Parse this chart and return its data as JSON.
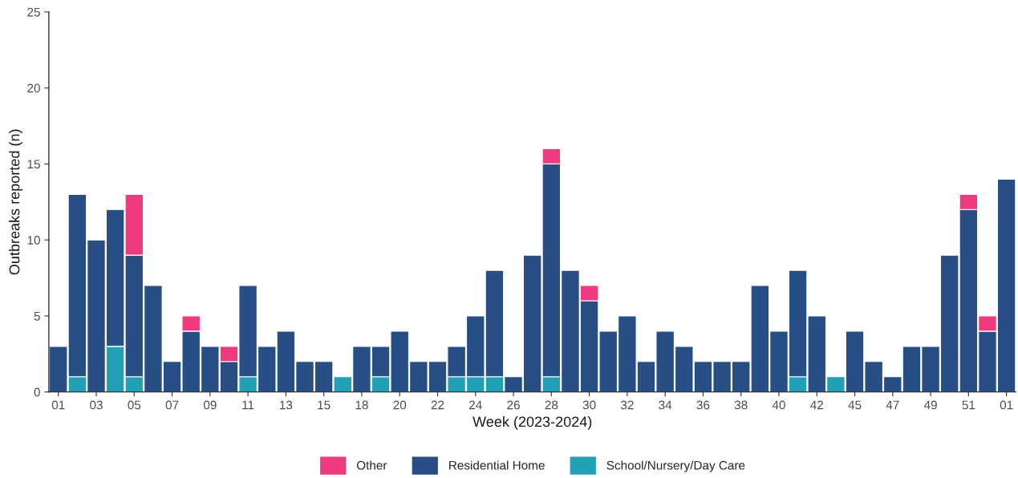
{
  "chart_data": {
    "type": "bar",
    "stacked": true,
    "xlabel": "Week (2023-2024)",
    "ylabel": "Outbreaks reported (n)",
    "categories": [
      "01",
      null,
      "03",
      null,
      "05",
      null,
      "07",
      null,
      "09",
      null,
      "11",
      null,
      "13",
      null,
      "15",
      null,
      "18",
      null,
      "20",
      null,
      "22",
      null,
      "24",
      null,
      "26",
      null,
      "28",
      null,
      "30",
      null,
      "32",
      null,
      "34",
      null,
      "36",
      null,
      "38",
      null,
      "40",
      null,
      "42",
      null,
      "45",
      null,
      "47",
      null,
      "49",
      null,
      "51",
      null,
      "01"
    ],
    "series": [
      {
        "name": "School/Nursery/Day Care",
        "color": "#22a0b6",
        "values": [
          0,
          1,
          0,
          3,
          1,
          0,
          0,
          0,
          0,
          0,
          1,
          0,
          0,
          0,
          0,
          1,
          0,
          1,
          0,
          0,
          0,
          1,
          1,
          1,
          0,
          0,
          1,
          0,
          0,
          0,
          0,
          0,
          0,
          0,
          0,
          0,
          0,
          0,
          0,
          1,
          0,
          1,
          0,
          0,
          0,
          0,
          0,
          0,
          0,
          0,
          0
        ]
      },
      {
        "name": "Residential Home",
        "color": "#284f85",
        "values": [
          3,
          12,
          10,
          9,
          8,
          7,
          2,
          4,
          3,
          2,
          6,
          3,
          4,
          2,
          2,
          0,
          3,
          2,
          4,
          2,
          2,
          2,
          4,
          7,
          1,
          9,
          14,
          8,
          6,
          4,
          5,
          2,
          4,
          3,
          2,
          2,
          2,
          7,
          4,
          7,
          5,
          0,
          4,
          2,
          1,
          3,
          3,
          9,
          12,
          4,
          14
        ]
      },
      {
        "name": "Other",
        "color": "#f0397f",
        "values": [
          0,
          0,
          0,
          0,
          4,
          0,
          0,
          1,
          0,
          1,
          0,
          0,
          0,
          0,
          0,
          0,
          0,
          0,
          0,
          0,
          0,
          0,
          0,
          0,
          0,
          0,
          1,
          0,
          1,
          0,
          0,
          0,
          0,
          0,
          0,
          0,
          0,
          0,
          0,
          0,
          0,
          0,
          0,
          0,
          0,
          0,
          0,
          0,
          1,
          1,
          0
        ]
      }
    ],
    "ylim": [
      0,
      25
    ],
    "yticks": [
      0,
      5,
      10,
      15,
      20,
      25
    ],
    "grid": false,
    "legend": "bottom"
  }
}
